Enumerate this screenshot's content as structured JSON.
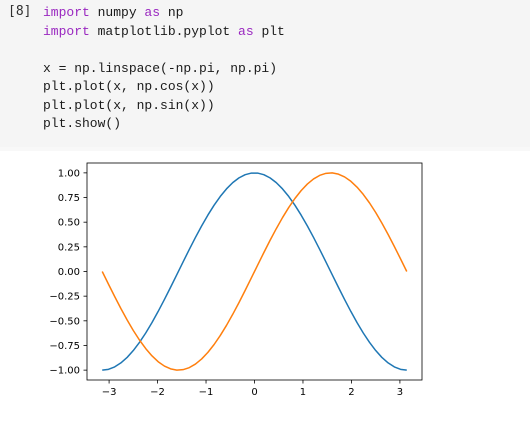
{
  "cell": {
    "prompt": "[8]",
    "code": [
      [
        {
          "t": "import",
          "k": true
        },
        {
          "t": " numpy "
        },
        {
          "t": "as",
          "k": true
        },
        {
          "t": " np"
        }
      ],
      [
        {
          "t": "import",
          "k": true
        },
        {
          "t": " matplotlib.pyplot "
        },
        {
          "t": "as",
          "k": true
        },
        {
          "t": " plt"
        }
      ],
      [],
      [
        {
          "t": "x = np.linspace(-np.pi, np.pi)"
        }
      ],
      [
        {
          "t": "plt.plot(x, np.cos(x))"
        }
      ],
      [
        {
          "t": "plt.plot(x, np.sin(x))"
        }
      ],
      [
        {
          "t": "plt.show()"
        }
      ]
    ]
  },
  "colors": {
    "cos": "#1f77b4",
    "sin": "#ff7f0e",
    "cell_bg": "#f5f5f5",
    "keyword": "#9a28c0"
  },
  "chart_data": {
    "type": "line",
    "title": "",
    "xlabel": "",
    "ylabel": "",
    "xlim": [
      -3.4557519,
      3.4557519
    ],
    "ylim": [
      -1.1,
      1.1
    ],
    "xticks": [
      -3,
      -2,
      -1,
      0,
      1,
      2,
      3
    ],
    "xtick_labels": [
      "−3",
      "−2",
      "−1",
      "0",
      "1",
      "2",
      "3"
    ],
    "yticks": [
      -1.0,
      -0.75,
      -0.5,
      -0.25,
      0.0,
      0.25,
      0.5,
      0.75,
      1.0
    ],
    "ytick_labels": [
      "−1.00",
      "−0.75",
      "−0.50",
      "−0.25",
      "0.00",
      "0.25",
      "0.50",
      "0.75",
      "1.00"
    ],
    "grid": false,
    "x": [
      -3.1416,
      -3.0133,
      -2.8851,
      -2.7569,
      -2.6287,
      -2.5005,
      -2.3722,
      -2.244,
      -2.1158,
      -1.9876,
      -1.8594,
      -1.7311,
      -1.6029,
      -1.4747,
      -1.3465,
      -1.2182,
      -1.09,
      -0.9618,
      -0.8336,
      -0.7054,
      -0.5771,
      -0.4489,
      -0.3207,
      -0.1925,
      -0.0641,
      0.0641,
      0.1925,
      0.3207,
      0.4489,
      0.5771,
      0.7054,
      0.8336,
      0.9618,
      1.09,
      1.2182,
      1.3465,
      1.4747,
      1.6029,
      1.7311,
      1.8594,
      1.9876,
      2.1158,
      2.244,
      2.3722,
      2.5005,
      2.6287,
      2.7569,
      2.8851,
      3.0133,
      3.1416
    ],
    "series": [
      {
        "values": [
          -1.0,
          -0.9918,
          -0.9673,
          -0.9269,
          -0.8713,
          -0.8014,
          -0.7183,
          -0.6235,
          -0.5184,
          -0.4047,
          -0.2845,
          -0.1596,
          -0.032,
          0.096,
          0.2225,
          0.3453,
          0.4625,
          0.5721,
          0.6723,
          0.7614,
          0.838,
          0.9009,
          0.949,
          0.9815,
          0.9979,
          0.9979,
          0.9815,
          0.949,
          0.9009,
          0.838,
          0.7614,
          0.6723,
          0.5721,
          0.4625,
          0.3453,
          0.2225,
          0.096,
          -0.032,
          -0.1596,
          -0.2845,
          -0.4047,
          -0.5184,
          -0.6235,
          -0.7183,
          -0.8014,
          -0.8713,
          -0.9269,
          -0.9673,
          -0.9918,
          -1.0
        ]
      },
      {
        "values": [
          0.0,
          -0.1279,
          -0.2537,
          -0.3753,
          -0.4907,
          -0.5981,
          -0.6957,
          -0.7818,
          -0.8551,
          -0.9145,
          -0.9587,
          -0.9872,
          -0.9995,
          -0.9954,
          -0.9749,
          -0.9385,
          -0.8866,
          -0.8202,
          -0.7402,
          -0.6482,
          -0.5455,
          -0.4339,
          -0.3153,
          -0.1915,
          -0.0641,
          0.0641,
          0.1915,
          0.3153,
          0.4339,
          0.5455,
          0.6482,
          0.7402,
          0.8202,
          0.8866,
          0.9385,
          0.9749,
          0.9954,
          0.9995,
          0.9872,
          0.9587,
          0.9145,
          0.8551,
          0.7818,
          0.6957,
          0.5981,
          0.4907,
          0.3753,
          0.2537,
          0.1279,
          0.0
        ]
      }
    ]
  }
}
